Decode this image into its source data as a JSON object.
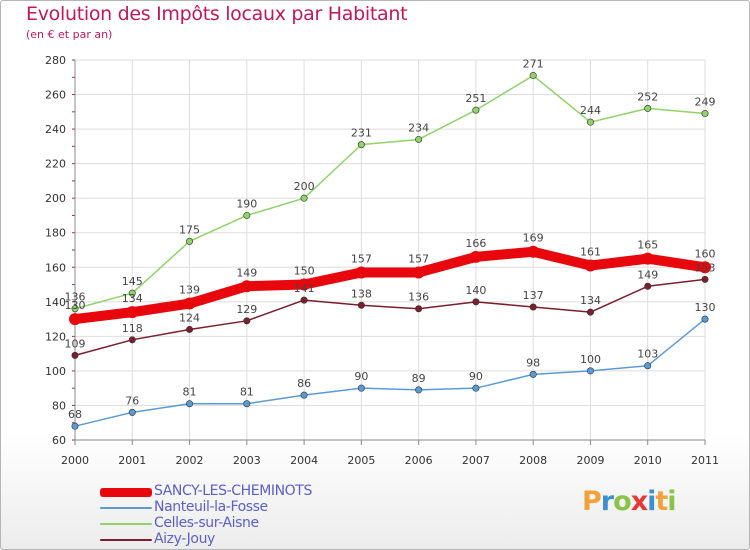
{
  "header": {
    "title": "Evolution des Impôts locaux par Habitant",
    "subtitle": "(en € et par an)"
  },
  "logo": {
    "letters": [
      "P",
      "r",
      "o",
      "x",
      "i",
      "t",
      "i"
    ],
    "colors": [
      "#f2a23a",
      "#3d8fd1",
      "#8bc34a",
      "#e53935",
      "#3d8fd1",
      "#f2a23a",
      "#8bc34a"
    ]
  },
  "colors": {
    "grid": "#dddddd",
    "axis": "#888888",
    "tick_text": "#333333",
    "value_text": "#444444",
    "title": "#c2185b",
    "legend_text": "#5b60c8"
  },
  "chart_data": {
    "type": "line",
    "title": "Evolution des Impôts locaux par Habitant",
    "subtitle": "(en € et par an)",
    "xlabel": "",
    "ylabel": "",
    "x": [
      "2000",
      "2001",
      "2002",
      "2003",
      "2004",
      "2005",
      "2006",
      "2007",
      "2008",
      "2009",
      "2010",
      "2011"
    ],
    "ylim": [
      60,
      280
    ],
    "yticks": [
      60,
      80,
      100,
      120,
      140,
      160,
      180,
      200,
      220,
      240,
      260,
      280
    ],
    "grid": true,
    "legend_position": "bottom-left",
    "series": [
      {
        "name": "SANCY-LES-CHEMINOTS",
        "color": "#e8070d",
        "emphasis": true,
        "values": [
          130,
          134,
          139,
          149,
          150,
          157,
          157,
          166,
          169,
          161,
          165,
          160
        ]
      },
      {
        "name": "Nanteuil-la-Fosse",
        "color": "#5b9bd5",
        "emphasis": false,
        "values": [
          68,
          76,
          81,
          81,
          86,
          90,
          89,
          90,
          98,
          100,
          103,
          130
        ]
      },
      {
        "name": "Celles-sur-Aisne",
        "color": "#8fd36a",
        "emphasis": false,
        "values": [
          136,
          145,
          175,
          190,
          200,
          231,
          234,
          251,
          271,
          244,
          252,
          249
        ]
      },
      {
        "name": "Aizy-Jouy",
        "color": "#7a1f2b",
        "emphasis": false,
        "values": [
          109,
          118,
          124,
          129,
          141,
          138,
          136,
          140,
          137,
          134,
          149,
          153
        ]
      }
    ]
  }
}
